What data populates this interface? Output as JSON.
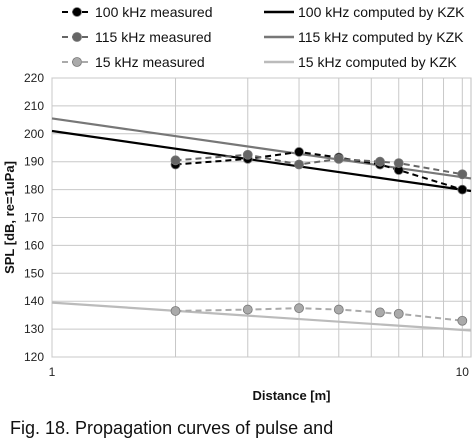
{
  "chart_data": {
    "type": "line",
    "xscale": "log",
    "xlim": [
      1,
      10.5
    ],
    "ylim": [
      120,
      220
    ],
    "yticks": [
      120,
      130,
      140,
      150,
      160,
      170,
      180,
      190,
      200,
      210,
      220
    ],
    "xticks": [
      1,
      10
    ],
    "xtick_labels": [
      "1",
      "10"
    ],
    "xlabel": "Distance [m]",
    "ylabel": "SPL [dB, re=1uPa]",
    "grid": true,
    "legend_position": "top",
    "series": [
      {
        "name": "100 kHz measured",
        "kind": "measured",
        "color": "#000000",
        "x": [
          2,
          3,
          4,
          5,
          6.3,
          7,
          10
        ],
        "y": [
          189,
          191,
          193.5,
          191.5,
          189,
          187,
          180
        ]
      },
      {
        "name": "115 kHz measured",
        "kind": "measured",
        "color": "#666666",
        "x": [
          2,
          3,
          4,
          5,
          6.3,
          7,
          10
        ],
        "y": [
          190.5,
          192.5,
          189,
          191,
          190,
          189.5,
          185.5
        ]
      },
      {
        "name": "15 kHz measured",
        "kind": "measured",
        "color": "#aaaaaa",
        "x": [
          2,
          3,
          4,
          5,
          6.3,
          7,
          10
        ],
        "y": [
          136.5,
          137,
          137.5,
          137,
          136,
          135.5,
          133
        ]
      },
      {
        "name": "100 kHz computed by KZK",
        "kind": "computed",
        "color": "#000000",
        "x": [
          1,
          10.5
        ],
        "y": [
          201,
          179.5
        ]
      },
      {
        "name": "115 kHz computed by KZK",
        "kind": "computed",
        "color": "#777777",
        "x": [
          1,
          10.5
        ],
        "y": [
          205.5,
          184
        ]
      },
      {
        "name": "15 kHz computed by KZK",
        "kind": "computed",
        "color": "#bbbbbb",
        "x": [
          1,
          10.5
        ],
        "y": [
          139.5,
          129.5
        ]
      }
    ]
  },
  "caption": "Fig. 18. Propagation curves of pulse and"
}
